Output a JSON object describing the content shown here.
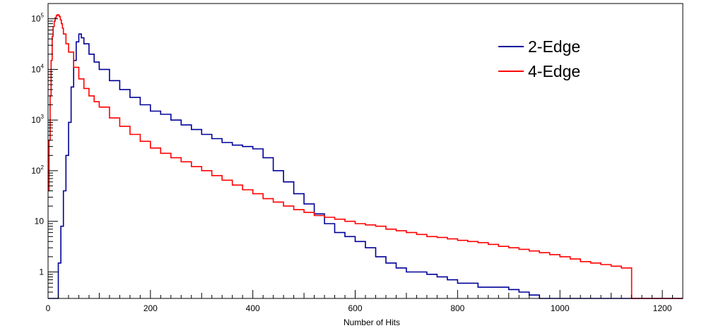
{
  "chart_data": {
    "type": "line",
    "title": "",
    "xlabel": "Number of Hits",
    "ylabel": "",
    "xlim": [
      0,
      1240
    ],
    "ylim": [
      0.3,
      200000
    ],
    "y_scale": "log",
    "grid": false,
    "legend_position": "top-right",
    "x_ticks": [
      "0",
      "200",
      "400",
      "600",
      "800",
      "1000",
      "1200"
    ],
    "y_ticks": [
      {
        "value": 1,
        "label": "1"
      },
      {
        "value": 10,
        "label": "10"
      },
      {
        "value": 100,
        "label": "10",
        "exp": "2"
      },
      {
        "value": 1000,
        "label": "10",
        "exp": "3"
      },
      {
        "value": 10000,
        "label": "10",
        "exp": "4"
      },
      {
        "value": 100000,
        "label": "10",
        "exp": "5"
      }
    ],
    "series": [
      {
        "name": "2-Edge",
        "color": "#000099",
        "x": [
          0,
          12,
          16,
          20,
          25,
          30,
          35,
          40,
          45,
          50,
          55,
          60,
          65,
          70,
          80,
          90,
          100,
          120,
          140,
          160,
          180,
          200,
          220,
          240,
          260,
          280,
          300,
          320,
          340,
          360,
          380,
          400,
          420,
          440,
          460,
          480,
          500,
          520,
          540,
          560,
          580,
          600,
          620,
          640,
          660,
          680,
          700,
          720,
          740,
          760,
          780,
          800,
          820,
          840,
          860,
          880,
          900,
          920,
          940,
          960,
          980,
          1000,
          1020,
          1040,
          1060,
          1080,
          1100,
          1120,
          1140,
          1160,
          1180,
          1200,
          1220,
          1240
        ],
        "y": [
          0.3,
          0.3,
          0.3,
          1.5,
          8,
          40,
          200,
          900,
          4500,
          15000,
          35000,
          50000,
          42000,
          32000,
          20000,
          14000,
          10000,
          6000,
          4000,
          2800,
          2000,
          1500,
          1300,
          1000,
          800,
          650,
          520,
          430,
          360,
          320,
          300,
          270,
          180,
          100,
          60,
          35,
          22,
          14,
          9,
          6,
          5,
          4,
          3,
          2,
          1.5,
          1.2,
          1,
          1,
          0.9,
          0.8,
          0.7,
          0.6,
          0.6,
          0.5,
          0.5,
          0.5,
          0.45,
          0.4,
          0.35,
          0.3,
          0.3,
          0.3,
          0.3,
          0.3,
          0.3,
          0.3,
          0.3,
          0.3,
          0.3,
          0.3,
          0.3,
          0.3,
          0.3,
          0.3
        ]
      },
      {
        "name": "4-Edge",
        "color": "#ff0000",
        "x": [
          0,
          2,
          4,
          6,
          8,
          10,
          12,
          14,
          16,
          18,
          20,
          22,
          24,
          26,
          28,
          30,
          35,
          40,
          50,
          60,
          70,
          80,
          90,
          100,
          120,
          140,
          160,
          180,
          200,
          220,
          240,
          260,
          280,
          300,
          320,
          340,
          360,
          380,
          400,
          420,
          440,
          460,
          480,
          500,
          520,
          540,
          560,
          580,
          600,
          620,
          640,
          660,
          680,
          700,
          720,
          740,
          760,
          780,
          800,
          820,
          840,
          860,
          880,
          900,
          920,
          940,
          960,
          980,
          1000,
          1020,
          1040,
          1060,
          1080,
          1100,
          1120,
          1140,
          1160,
          1180,
          1200,
          1220,
          1240
        ],
        "y": [
          40,
          400,
          3000,
          15000,
          45000,
          70000,
          90000,
          105000,
          115000,
          120000,
          118000,
          110000,
          95000,
          80000,
          65000,
          50000,
          32000,
          22000,
          11000,
          6500,
          4200,
          3000,
          2300,
          1800,
          1100,
          750,
          520,
          380,
          280,
          220,
          180,
          150,
          120,
          100,
          80,
          65,
          52,
          42,
          35,
          28,
          24,
          20,
          17,
          15,
          13,
          12,
          11,
          10,
          9,
          8.5,
          8,
          7,
          6.5,
          6,
          5.5,
          5,
          4.8,
          4.5,
          4.2,
          4,
          3.8,
          3.5,
          3.2,
          3,
          2.8,
          2.6,
          2.4,
          2.2,
          2,
          1.8,
          1.6,
          1.5,
          1.4,
          1.3,
          1.2,
          0.3,
          0.3,
          0.3,
          0.3,
          0.3,
          0.3
        ]
      }
    ]
  }
}
